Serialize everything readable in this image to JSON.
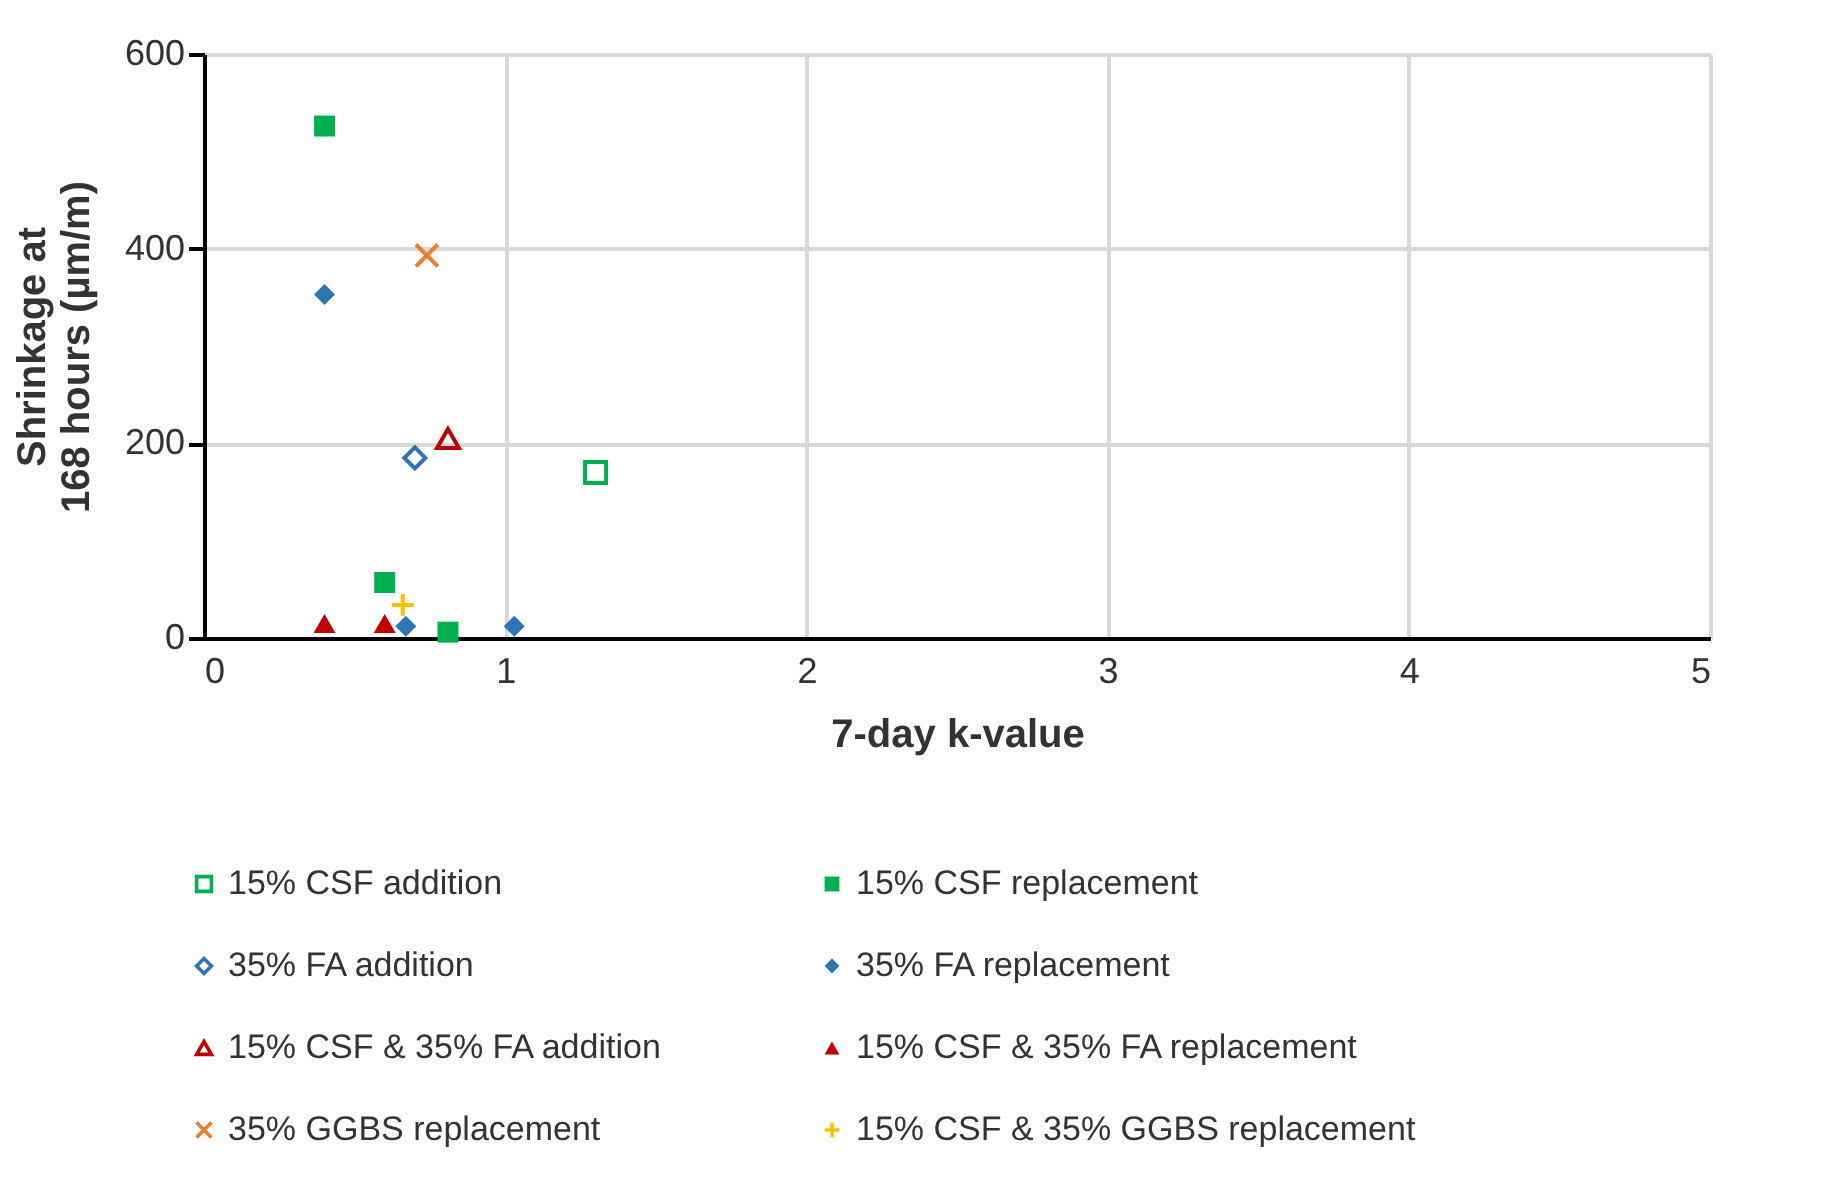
{
  "chart_data": {
    "type": "scatter",
    "xlabel": "7-day k-value",
    "ylabel": "Shrinkage at\n168 hours (µm/m)",
    "xlim": [
      0,
      5
    ],
    "xticks": [
      0,
      1,
      2,
      3,
      4,
      5
    ],
    "ylim": [
      0,
      600
    ],
    "yticks": [
      0,
      200,
      400,
      600
    ],
    "grid": true,
    "legend": "bottom",
    "series": [
      {
        "name": "15% CSF addition",
        "color": "#00b050",
        "marker": "square-open",
        "x": [
          1.3
        ],
        "values": [
          170
        ]
      },
      {
        "name": "15% CSF replacement",
        "color": "#00b050",
        "marker": "square",
        "x": [
          0.4,
          0.6,
          0.81
        ],
        "values": [
          526,
          57,
          6
        ]
      },
      {
        "name": "35% FA addition",
        "color": "#2e75b6",
        "marker": "diamond-open",
        "x": [
          0.7
        ],
        "values": [
          185
        ]
      },
      {
        "name": "35% FA replacement",
        "color": "#2e75b6",
        "marker": "diamond",
        "x": [
          0.4,
          0.67,
          1.03
        ],
        "values": [
          353,
          12,
          12
        ]
      },
      {
        "name": "15% CSF & 35% FA addition",
        "color": "#c00000",
        "marker": "triangle-open",
        "x": [
          0.81
        ],
        "values": [
          205
        ]
      },
      {
        "name": "15% CSF & 35% FA replacement",
        "color": "#c00000",
        "marker": "triangle",
        "x": [
          0.4,
          0.6
        ],
        "values": [
          15,
          15
        ]
      },
      {
        "name": "35% GGBS replacement",
        "color": "#ed7d31",
        "marker": "cross",
        "x": [
          0.74
        ],
        "values": [
          393
        ]
      },
      {
        "name": "15% CSF & 35% GGBS replacement",
        "color": "#ffc000",
        "marker": "plus",
        "x": [
          0.66
        ],
        "values": [
          34
        ]
      }
    ]
  }
}
